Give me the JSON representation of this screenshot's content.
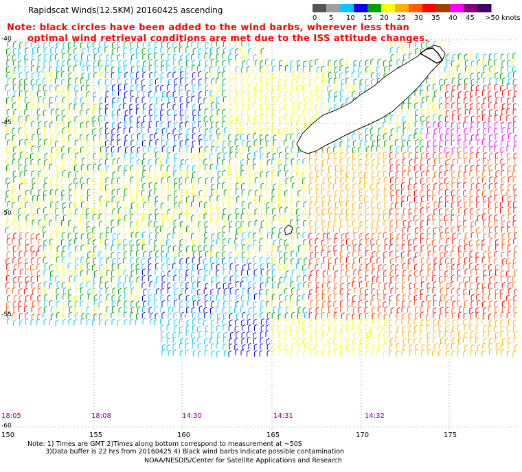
{
  "title": "Rapidscat Winds(12.5KM) 20160425 ascending",
  "note_lines": [
    "Note: black circles have been added to the wind barbs, wherever less than",
    "optimal wind retrieval conditions are met due to the ISS attitude changes."
  ],
  "legend": {
    "labels": [
      "0",
      "5",
      "10",
      "15",
      "20",
      "25",
      "30",
      "35",
      "40",
      "45",
      ">50 knots"
    ],
    "colors": [
      "#555555",
      "#a0a0a0",
      "#00c8ff",
      "#0000e0",
      "#00a000",
      "#ffff00",
      "#ffb000",
      "#ff6000",
      "#ff0000",
      "#a04000",
      "#ff00ff",
      "#800080",
      "#400060"
    ]
  },
  "lat_labels": [
    "-40",
    "-45",
    "-50",
    "-55",
    "-60"
  ],
  "lon_labels": [
    "150",
    "155",
    "160",
    "165",
    "170",
    "175"
  ],
  "time_labels": [
    "18:05",
    "18:08",
    "14:30",
    "14:31",
    "14:32"
  ],
  "footer": {
    "line1": "Note: 1) Times are GMT 2)Times along bottom correspond to measurement at ~50S",
    "line2": "3)Data buffer is 22 hrs from 20160425 4) Black wind barbs indicate possible contamination",
    "line3": "NOAA/NESDIS/Center for Satellite Applications and Research"
  },
  "map_data": {
    "lon_range": [
      150,
      179
    ],
    "lat_range": [
      -60,
      -40
    ],
    "region": "New Zealand South Island"
  }
}
